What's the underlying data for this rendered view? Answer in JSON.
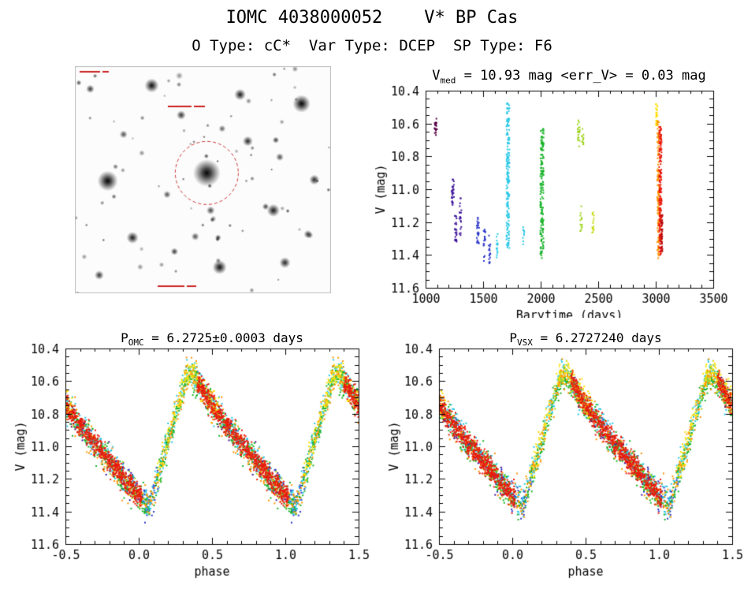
{
  "header": {
    "title": "IOMC 4038000052    V* BP Cas",
    "subtitle": "O Type: cC*  Var Type: DCEP  SP Type: F6"
  },
  "object": {
    "iomc_id": "4038000052",
    "name": "V* BP Cas",
    "o_type": "cC*",
    "var_type": "DCEP",
    "sp_type": "F6"
  },
  "starfield": {
    "description": "Inverted grayscale finder chart of the field around BP Cas with the target star circled",
    "marker_color": "#cc3333"
  },
  "chart_data": [
    {
      "id": "timeseries",
      "type": "scatter",
      "seed": 7,
      "title": {
        "prefix": "V",
        "sub": "med",
        "rest": " = 10.93 mag <err_V> = 0.03 mag"
      },
      "median_v_mag": 10.93,
      "mean_err_v_mag": 0.03,
      "xlabel": "Barytime (days)",
      "ylabel": "V (mag)",
      "xlim": [
        1000,
        3500
      ],
      "ylim": [
        10.4,
        11.6
      ],
      "y_axis_note": "magnitude axis, brighter (10.4) at top",
      "xticks": [
        1000,
        1500,
        2000,
        2500,
        3000,
        3500
      ],
      "xtick_labels": [
        "1000",
        "1500",
        "2000",
        "2500",
        "3000",
        "3500"
      ],
      "yticks": [
        10.4,
        10.6,
        10.8,
        11.0,
        11.2,
        11.4,
        11.6
      ],
      "ytick_labels": [
        "10.4",
        "10.6",
        "10.8",
        "11.0",
        "11.2",
        "11.4",
        "11.6"
      ],
      "x_minor": 100,
      "y_minor": 0.05,
      "clusters": [
        {
          "x": 1088,
          "dx": 22,
          "v1": 10.56,
          "v2": 10.67,
          "n": 20,
          "color": "#550044"
        },
        {
          "x": 1237,
          "dx": 20,
          "v1": 10.94,
          "v2": 11.13,
          "n": 30,
          "color": "#3d1399"
        },
        {
          "x": 1262,
          "dx": 16,
          "v1": 11.16,
          "v2": 11.33,
          "n": 24,
          "color": "#3d1399"
        },
        {
          "x": 1303,
          "dx": 16,
          "v1": 11.05,
          "v2": 11.28,
          "n": 20,
          "color": "#3d1399"
        },
        {
          "x": 1455,
          "dx": 20,
          "v1": 11.17,
          "v2": 11.33,
          "n": 24,
          "color": "#2a35c8"
        },
        {
          "x": 1512,
          "dx": 16,
          "v1": 11.24,
          "v2": 11.44,
          "n": 18,
          "color": "#2a35c8"
        },
        {
          "x": 1556,
          "dx": 14,
          "v1": 11.28,
          "v2": 11.46,
          "n": 16,
          "color": "#2a35c8"
        },
        {
          "x": 1622,
          "dx": 12,
          "v1": 11.27,
          "v2": 11.42,
          "n": 14,
          "color": "#29c8e6"
        },
        {
          "x": 1716,
          "dx": 26,
          "v1": 10.47,
          "v2": 11.36,
          "n": 170,
          "color": "#29c8e6"
        },
        {
          "x": 1852,
          "dx": 12,
          "v1": 11.22,
          "v2": 11.35,
          "n": 10,
          "color": "#29c8e6"
        },
        {
          "x": 2012,
          "dx": 30,
          "v1": 10.63,
          "v2": 11.42,
          "n": 160,
          "color": "#17b327"
        },
        {
          "x": 2332,
          "dx": 20,
          "v1": 10.58,
          "v2": 10.74,
          "n": 22,
          "color": "#9fd41f"
        },
        {
          "x": 2366,
          "dx": 14,
          "v1": 10.62,
          "v2": 10.73,
          "n": 12,
          "color": "#9fd41f"
        },
        {
          "x": 2352,
          "dx": 16,
          "v1": 11.08,
          "v2": 11.26,
          "n": 14,
          "color": "#9fd41f"
        },
        {
          "x": 2455,
          "dx": 16,
          "v1": 11.12,
          "v2": 11.3,
          "n": 16,
          "color": "#c8dc14"
        },
        {
          "x": 3008,
          "dx": 14,
          "v1": 10.48,
          "v2": 10.62,
          "n": 26,
          "color": "#ffdf00"
        },
        {
          "x": 3022,
          "dx": 18,
          "v1": 10.58,
          "v2": 11.42,
          "n": 120,
          "color": "#ff9500"
        },
        {
          "x": 3040,
          "dx": 22,
          "v1": 10.62,
          "v2": 11.4,
          "n": 210,
          "color": "#ea1a0c"
        },
        {
          "x": 3054,
          "dx": 10,
          "v1": 11.15,
          "v2": 11.38,
          "n": 30,
          "color": "#b30000"
        }
      ]
    },
    {
      "id": "phase_omc",
      "type": "scatter",
      "seed": 11,
      "title": {
        "prefix": "P",
        "sub": "OMC",
        "rest": " = 6.2725±0.0003 days"
      },
      "period_days": 6.2725,
      "period_error_days": 0.0003,
      "xlabel": "phase",
      "ylabel": "V (mag)",
      "xlim": [
        -0.5,
        1.5
      ],
      "ylim": [
        10.4,
        11.6
      ],
      "xticks": [
        -0.5,
        0.0,
        0.5,
        1.0,
        1.5
      ],
      "xtick_labels": [
        "-0.5",
        "0.0",
        "0.5",
        "1.0",
        "1.5"
      ],
      "yticks": [
        10.4,
        10.6,
        10.8,
        11.0,
        11.2,
        11.4,
        11.6
      ],
      "ytick_labels": [
        "10.4",
        "10.6",
        "10.8",
        "11.0",
        "11.2",
        "11.4",
        "11.6"
      ],
      "x_minor": 0.1,
      "y_minor": 0.05,
      "model": {
        "phase_of_max": 0.35,
        "v_bright": 10.57,
        "v_faint": 11.37,
        "decline_fraction": 0.72
      },
      "groups": [
        {
          "color": "#550044",
          "n": 55,
          "p1": 0.4,
          "p2": 0.62,
          "sigma": 0.035,
          "off": 0.0
        },
        {
          "color": "#3d1399",
          "n": 85,
          "p1": 0.6,
          "p2": 0.95,
          "sigma": 0.04,
          "off": 0.0
        },
        {
          "color": "#2a35c8",
          "n": 85,
          "p1": 0.88,
          "p2": 1.14,
          "sigma": 0.04,
          "off": 0.0
        },
        {
          "color": "#29c8e6",
          "n": 380,
          "p1": 0.0,
          "p2": 1.0,
          "sigma": 0.042,
          "off": -0.01
        },
        {
          "color": "#17b327",
          "n": 380,
          "p1": 0.0,
          "p2": 1.0,
          "sigma": 0.045,
          "off": 0.01
        },
        {
          "color": "#9fd41f",
          "n": 70,
          "p1": 0.28,
          "p2": 0.52,
          "sigma": 0.035,
          "off": 0.0
        },
        {
          "color": "#9fd41f",
          "n": 50,
          "p1": 0.76,
          "p2": 0.98,
          "sigma": 0.035,
          "off": 0.0
        },
        {
          "color": "#ffdf00",
          "n": 170,
          "p1": 0.12,
          "p2": 0.55,
          "sigma": 0.04,
          "off": -0.02
        },
        {
          "color": "#ff9500",
          "n": 260,
          "p1": 0.0,
          "p2": 1.0,
          "sigma": 0.045,
          "off": 0.01
        },
        {
          "color": "#ea1a0c",
          "n": 680,
          "p1": 0.4,
          "p2": 1.02,
          "sigma": 0.034,
          "off": 0.0
        }
      ]
    },
    {
      "id": "phase_vsx",
      "type": "scatter",
      "seed": 23,
      "title": {
        "prefix": "P",
        "sub": "VSX",
        "rest": " = 6.2727240 days"
      },
      "period_days": 6.272724,
      "xlabel": "phase",
      "ylabel": "V (mag)",
      "xlim": [
        -0.5,
        1.5
      ],
      "ylim": [
        10.4,
        11.6
      ],
      "xticks": [
        -0.5,
        0.0,
        0.5,
        1.0,
        1.5
      ],
      "xtick_labels": [
        "-0.5",
        "0.0",
        "0.5",
        "1.0",
        "1.5"
      ],
      "yticks": [
        10.4,
        10.6,
        10.8,
        11.0,
        11.2,
        11.4,
        11.6
      ],
      "ytick_labels": [
        "10.4",
        "10.6",
        "10.8",
        "11.0",
        "11.2",
        "11.4",
        "11.6"
      ],
      "x_minor": 0.1,
      "y_minor": 0.05,
      "model": {
        "phase_of_max": 0.35,
        "v_bright": 10.57,
        "v_faint": 11.37,
        "decline_fraction": 0.72
      },
      "groups_ref": "phase_omc"
    }
  ]
}
